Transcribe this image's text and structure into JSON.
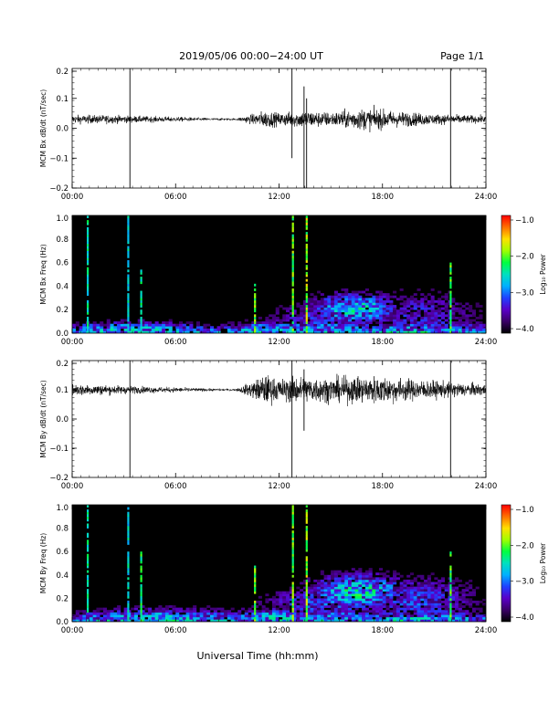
{
  "header": {
    "title": "2019/05/06  00:00−24:00 UT",
    "page": "Page 1/1"
  },
  "footer": {
    "xlabel": "Universal Time (hh:mm)"
  },
  "colors": {
    "background": "#ffffff",
    "trace": "#000000",
    "spectrogram_background": "#000000",
    "colormap": [
      "#000000",
      "#3a0066",
      "#5a00c8",
      "#2040ff",
      "#00b0ff",
      "#00e0c0",
      "#00ff40",
      "#a0ff00",
      "#ffe000",
      "#ff7000",
      "#ff0000"
    ]
  },
  "chart_data": [
    {
      "type": "line",
      "ylabel": "MCM Bx dB/dt (nT/sec)",
      "xlim": [
        0,
        24
      ],
      "ylim": [
        -0.2,
        0.2
      ],
      "xticks": [
        "00:00",
        "06:00",
        "12:00",
        "18:00",
        "24:00"
      ],
      "yticks": [
        "0.2",
        "0.1",
        "0.0",
        "−0.1",
        "−0.2"
      ],
      "baseline": 0.03,
      "noise_amplitude": [
        {
          "t": 0,
          "amp": 0.012
        },
        {
          "t": 2,
          "amp": 0.012
        },
        {
          "t": 4,
          "amp": 0.009
        },
        {
          "t": 6,
          "amp": 0.007
        },
        {
          "t": 8,
          "amp": 0.004
        },
        {
          "t": 9.5,
          "amp": 0.003
        },
        {
          "t": 10.5,
          "amp": 0.015
        },
        {
          "t": 11.2,
          "amp": 0.025
        },
        {
          "t": 12,
          "amp": 0.018
        },
        {
          "t": 13.5,
          "amp": 0.025
        },
        {
          "t": 15,
          "amp": 0.02
        },
        {
          "t": 16.5,
          "amp": 0.03
        },
        {
          "t": 17.5,
          "amp": 0.03
        },
        {
          "t": 19,
          "amp": 0.022
        },
        {
          "t": 21,
          "amp": 0.015
        },
        {
          "t": 24,
          "amp": 0.01
        }
      ],
      "spikes": [
        {
          "t": 3.35,
          "min": -0.2,
          "max": 0.2
        },
        {
          "t": 12.75,
          "min": -0.1,
          "max": 0.2
        },
        {
          "t": 13.45,
          "min": -0.2,
          "max": 0.14
        },
        {
          "t": 13.6,
          "min": -0.2,
          "max": 0.1
        },
        {
          "t": 21.95,
          "min": -0.2,
          "max": 0.2
        }
      ]
    },
    {
      "type": "heatmap",
      "ylabel": "MCM Bx Freq (Hz)",
      "xlim": [
        0,
        24
      ],
      "ylim": [
        0.0,
        1.0
      ],
      "xticks": [
        "00:00",
        "06:00",
        "12:00",
        "18:00",
        "24:00"
      ],
      "yticks": [
        "1.0",
        "0.8",
        "0.6",
        "0.4",
        "0.2",
        "0.0"
      ],
      "colorbar": {
        "label": "Log₁₀ Power",
        "range": [
          -4.0,
          -1.0
        ],
        "ticks": [
          "−1.0",
          "−2.0",
          "−3.0",
          "−4.0"
        ]
      },
      "activity_blobs": [
        {
          "t": 16.3,
          "f": 0.2,
          "dt": 2.6,
          "df": 0.13,
          "level": 0.4
        },
        {
          "t": 14.5,
          "f": 0.12,
          "dt": 3.5,
          "df": 0.12,
          "level": 0.22
        },
        {
          "t": 20.0,
          "f": 0.15,
          "dt": 3.5,
          "df": 0.2,
          "level": 0.2
        },
        {
          "t": 3.5,
          "f": 0.05,
          "dt": 4.0,
          "df": 0.06,
          "level": 0.18
        },
        {
          "t": 11.5,
          "f": 0.05,
          "dt": 2.5,
          "df": 0.06,
          "level": 0.18
        }
      ],
      "vertical_bands": [
        {
          "t": 0.9,
          "level": 0.55,
          "fmax": 1.0
        },
        {
          "t": 3.25,
          "level": 0.5,
          "fmax": 1.0
        },
        {
          "t": 4.0,
          "level": 0.55,
          "fmax": 0.55
        },
        {
          "t": 10.6,
          "level": 0.7,
          "fmax": 0.45
        },
        {
          "t": 12.8,
          "level": 0.7,
          "fmax": 1.0
        },
        {
          "t": 13.6,
          "level": 0.75,
          "fmax": 1.0
        },
        {
          "t": 21.95,
          "level": 0.65,
          "fmax": 0.6
        }
      ]
    },
    {
      "type": "line",
      "ylabel": "MCM By dB/dt (nT/sec)",
      "xlim": [
        0,
        24
      ],
      "ylim": [
        -0.2,
        0.2
      ],
      "xticks": [
        "00:00",
        "06:00",
        "12:00",
        "18:00",
        "24:00"
      ],
      "yticks": [
        "0.2",
        "0.1",
        "0.0",
        "−0.1",
        "−0.2"
      ],
      "baseline": 0.1,
      "noise_amplitude": [
        {
          "t": 0,
          "amp": 0.018
        },
        {
          "t": 2,
          "amp": 0.014
        },
        {
          "t": 4,
          "amp": 0.01
        },
        {
          "t": 6,
          "amp": 0.007
        },
        {
          "t": 8,
          "amp": 0.004
        },
        {
          "t": 9.5,
          "amp": 0.003
        },
        {
          "t": 10.5,
          "amp": 0.025
        },
        {
          "t": 11.2,
          "amp": 0.045
        },
        {
          "t": 12,
          "amp": 0.03
        },
        {
          "t": 13,
          "amp": 0.04
        },
        {
          "t": 15,
          "amp": 0.035
        },
        {
          "t": 16.5,
          "amp": 0.04
        },
        {
          "t": 18,
          "amp": 0.04
        },
        {
          "t": 20,
          "amp": 0.03
        },
        {
          "t": 22,
          "amp": 0.022
        },
        {
          "t": 24,
          "amp": 0.016
        }
      ],
      "spikes": [
        {
          "t": 3.35,
          "min": -0.2,
          "max": 0.2
        },
        {
          "t": 12.75,
          "min": -0.2,
          "max": 0.2
        },
        {
          "t": 13.45,
          "min": -0.04,
          "max": 0.17
        },
        {
          "t": 21.95,
          "min": -0.2,
          "max": 0.2
        }
      ]
    },
    {
      "type": "heatmap",
      "ylabel": "MCM By Freq (Hz)",
      "xlim": [
        0,
        24
      ],
      "ylim": [
        0.0,
        1.0
      ],
      "xticks": [
        "00:00",
        "06:00",
        "12:00",
        "18:00",
        "24:00"
      ],
      "yticks": [
        "1.0",
        "0.8",
        "0.6",
        "0.4",
        "0.2",
        "0.0"
      ],
      "colorbar": {
        "label": "Log₁₀ Power",
        "range": [
          -4.0,
          -1.0
        ],
        "ticks": [
          "−1.0",
          "−2.0",
          "−3.0",
          "−4.0"
        ]
      },
      "activity_blobs": [
        {
          "t": 16.5,
          "f": 0.25,
          "dt": 2.8,
          "df": 0.15,
          "level": 0.42
        },
        {
          "t": 14.5,
          "f": 0.15,
          "dt": 3.5,
          "df": 0.14,
          "level": 0.26
        },
        {
          "t": 20.0,
          "f": 0.18,
          "dt": 3.5,
          "df": 0.2,
          "level": 0.24
        },
        {
          "t": 5.0,
          "f": 0.06,
          "dt": 5.0,
          "df": 0.07,
          "level": 0.2
        },
        {
          "t": 11.5,
          "f": 0.06,
          "dt": 2.5,
          "df": 0.07,
          "level": 0.2
        }
      ],
      "vertical_bands": [
        {
          "t": 0.9,
          "level": 0.55,
          "fmax": 1.0
        },
        {
          "t": 3.25,
          "level": 0.5,
          "fmax": 1.0
        },
        {
          "t": 4.0,
          "level": 0.6,
          "fmax": 0.6
        },
        {
          "t": 10.6,
          "level": 0.72,
          "fmax": 0.5
        },
        {
          "t": 12.8,
          "level": 0.7,
          "fmax": 1.0
        },
        {
          "t": 13.6,
          "level": 0.75,
          "fmax": 1.0
        },
        {
          "t": 21.95,
          "level": 0.65,
          "fmax": 0.6
        }
      ]
    }
  ]
}
